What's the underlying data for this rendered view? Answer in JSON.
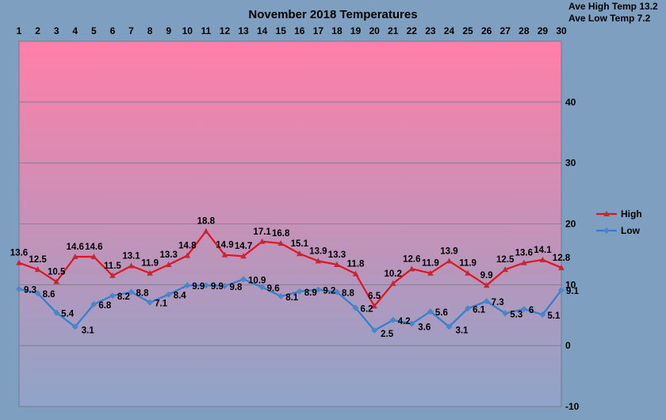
{
  "chart_data": {
    "type": "line",
    "title": "November 2018 Temperatures",
    "annotations": {
      "ave_high": "Ave High Temp 13.2",
      "ave_low": "Ave Low Temp 7.2"
    },
    "x": [
      "1",
      "2",
      "3",
      "4",
      "5",
      "6",
      "7",
      "8",
      "9",
      "10",
      "11",
      "12",
      "13",
      "14",
      "15",
      "16",
      "17",
      "18",
      "19",
      "20",
      "21",
      "22",
      "23",
      "24",
      "25",
      "26",
      "27",
      "28",
      "29",
      "30"
    ],
    "x_axis_position": "top",
    "y_axis_position": "right",
    "ylim": [
      -10,
      50
    ],
    "yticks": [
      -10,
      0,
      10,
      20,
      30,
      40
    ],
    "grid": true,
    "legend": "right",
    "series": [
      {
        "name": "High",
        "color": "#e8101a",
        "marker_color": "#c02838",
        "values": [
          13.6,
          12.5,
          10.5,
          14.6,
          14.6,
          11.5,
          13.1,
          11.9,
          13.3,
          14.8,
          18.8,
          14.9,
          14.7,
          17.1,
          16.8,
          15.1,
          13.9,
          13.3,
          11.8,
          6.5,
          10.2,
          12.6,
          11.9,
          13.9,
          11.9,
          9.9,
          12.5,
          13.6,
          14.1,
          12.8
        ],
        "labels": [
          "13.6",
          "12.5",
          "10.5",
          "14.6",
          "14.6",
          "11.5",
          "13.1",
          "11.9",
          "13.3",
          "14.8",
          "18.8",
          "14.9",
          "14.7",
          "17.1",
          "16.8",
          "15.1",
          "13.9",
          "13.3",
          "11.8",
          "6.5",
          "10.2",
          "12.6",
          "11.9",
          "13.9",
          "11.9",
          "9.9",
          "12.5",
          "13.6",
          "14.1",
          "12.8"
        ]
      },
      {
        "name": "Low",
        "color": "#2f7fd0",
        "marker_color": "#4a86c8",
        "values": [
          9.3,
          8.6,
          5.4,
          3.1,
          6.8,
          8.2,
          8.8,
          7.1,
          8.4,
          9.9,
          9.9,
          9.8,
          10.9,
          9.6,
          8.1,
          8.9,
          9.2,
          8.8,
          6.2,
          2.5,
          4.2,
          3.6,
          5.6,
          3.1,
          6.1,
          7.3,
          5.3,
          6,
          5.1,
          9.1
        ],
        "labels": [
          "9.3",
          "8.6",
          "5.4",
          "3.1",
          "6.8",
          "8.2",
          "8.8",
          "7.1",
          "8.4",
          "9.9",
          "9.9",
          "9.8",
          "10.9",
          "9.6",
          "8.1",
          "8.9",
          "9.2",
          "8.8",
          "6.2",
          "2.5",
          "4.2",
          "3.6",
          "5.6",
          "3.1",
          "6.1",
          "7.3",
          "5.3",
          "6",
          "5.1",
          "9.1"
        ]
      }
    ],
    "colors": {
      "background": "#7f9fc0",
      "plot_top": "#ff7fa8",
      "plot_bottom": "#8ea4c8",
      "grid": "#7a7a8c"
    }
  }
}
